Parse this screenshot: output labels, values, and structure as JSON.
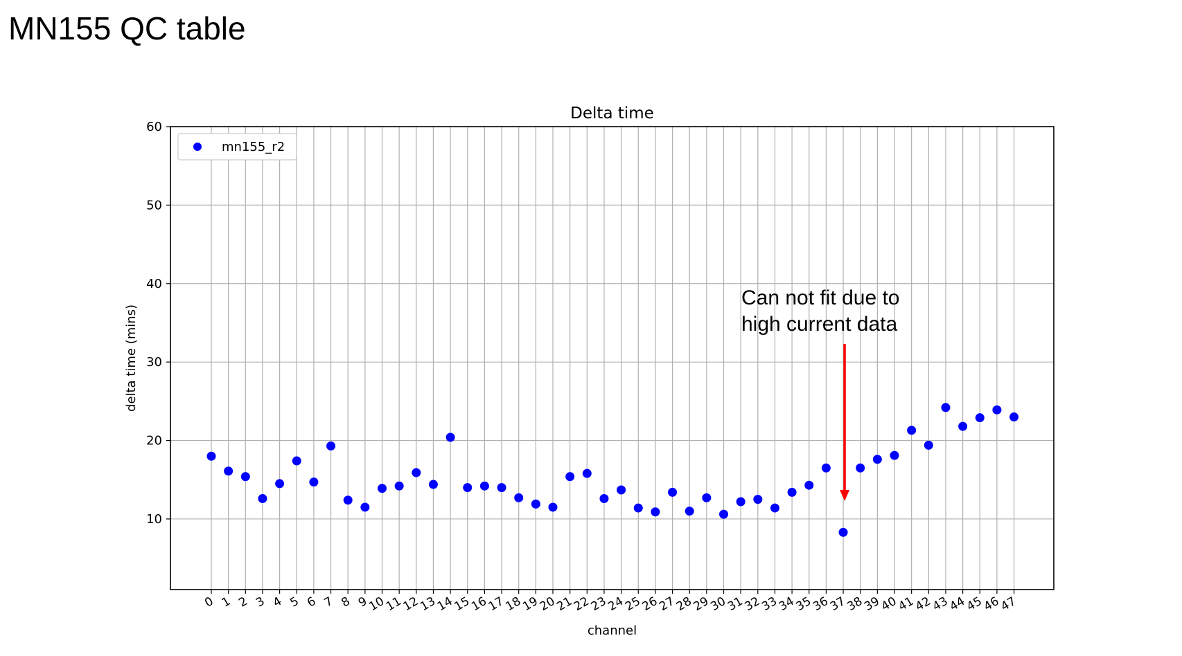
{
  "slide": {
    "title": "MN155 QC table"
  },
  "annotation": {
    "line1": "Can not fit due to",
    "line2": "high current data",
    "arrow_color": "#ff0000",
    "target_channel": 37
  },
  "chart_data": {
    "type": "scatter",
    "title": "Delta time",
    "xlabel": "channel",
    "ylabel": "delta time (mins)",
    "x": [
      0,
      1,
      2,
      3,
      4,
      5,
      6,
      7,
      8,
      9,
      10,
      11,
      12,
      13,
      14,
      15,
      16,
      17,
      18,
      19,
      20,
      21,
      22,
      23,
      24,
      25,
      26,
      27,
      28,
      29,
      30,
      31,
      32,
      33,
      34,
      35,
      36,
      37,
      38,
      39,
      40,
      41,
      42,
      43,
      44,
      45,
      46,
      47
    ],
    "series": [
      {
        "name": "mn155_r2",
        "color": "#0000ff",
        "values": [
          18.0,
          16.1,
          15.4,
          12.6,
          14.5,
          17.4,
          14.7,
          19.3,
          12.4,
          11.5,
          13.9,
          14.2,
          15.9,
          14.4,
          20.4,
          14.0,
          14.2,
          14.0,
          12.7,
          11.9,
          11.5,
          15.4,
          15.8,
          12.6,
          13.7,
          11.4,
          10.9,
          13.4,
          11.0,
          12.7,
          10.6,
          12.2,
          12.5,
          11.4,
          13.4,
          14.3,
          16.5,
          8.3,
          16.5,
          17.6,
          18.1,
          21.3,
          19.4,
          24.2,
          21.8,
          22.9,
          23.9,
          23.0
        ]
      }
    ],
    "xticks": [
      "0",
      "1",
      "2",
      "3",
      "4",
      "5",
      "6",
      "7",
      "8",
      "9",
      "10",
      "11",
      "12",
      "13",
      "14",
      "15",
      "16",
      "17",
      "18",
      "19",
      "20",
      "21",
      "22",
      "23",
      "24",
      "25",
      "26",
      "27",
      "28",
      "29",
      "30",
      "31",
      "32",
      "33",
      "34",
      "35",
      "36",
      "37",
      "38",
      "39",
      "40",
      "41",
      "42",
      "43",
      "44",
      "45",
      "46",
      "47"
    ],
    "yticks": [
      10,
      20,
      30,
      40,
      50,
      60
    ],
    "ylim": [
      1,
      60
    ],
    "grid": true,
    "legend_position": "top-left"
  }
}
